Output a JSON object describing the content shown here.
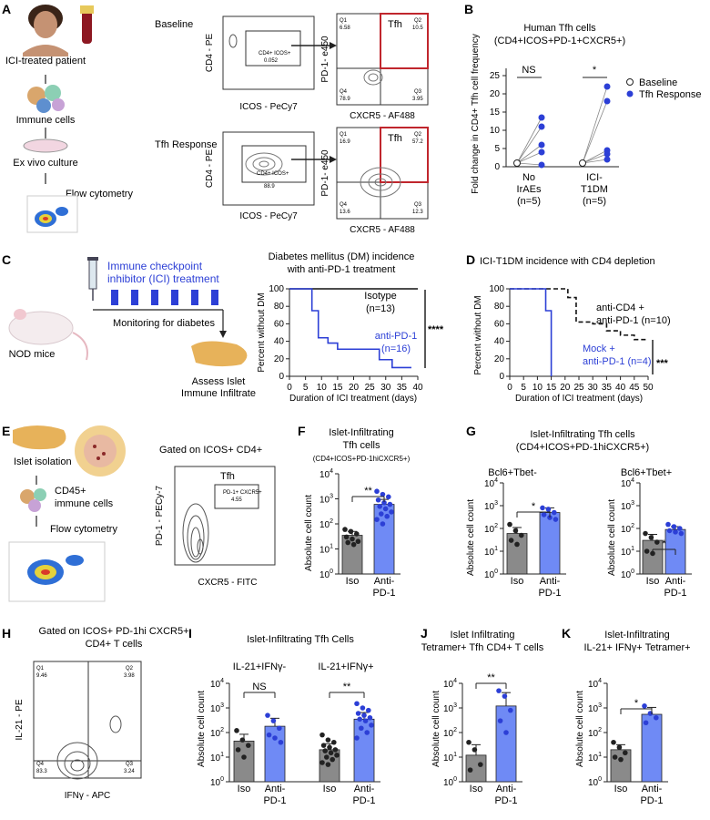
{
  "panels": {
    "A": {
      "letter": "A",
      "patient": "ICI-treated patient",
      "immune_cells": "Immune cells",
      "ex_vivo": "Ex vivo culture",
      "flow": "Flow cytometry",
      "row1": "Baseline",
      "row2": "Tfh Response",
      "cd4_pe": "CD4 - PE",
      "icos_pecy7": "ICOS - PeCy7",
      "pd1_e450": "PD-1- e450",
      "cxcr5_af488": "CXCR5 - AF488",
      "tfh": "Tfh",
      "gate_label": "CD4+ ICOS+",
      "baseline_gate": "0.052",
      "response_gate": "88.9",
      "quads_baseline": {
        "Q1": "6.58",
        "Q2": "10.5",
        "Q4": "78.9",
        "Q3": "3.95"
      },
      "quads_response": {
        "Q1": "16.9",
        "Q2": "57.2",
        "Q4": "13.6",
        "Q3": "12.3"
      }
    },
    "B": {
      "letter": "B",
      "title1": "Human Tfh cells",
      "title2": "(CD4+ICOS+PD-1+CXCR5+)",
      "ylabel": "Fold change in CD4+ Tfh cell frequency",
      "legend_baseline": "Baseline",
      "legend_response": "Tfh Response",
      "sig1": "NS",
      "sig2": "*",
      "g1a": "No",
      "g1b": "IrAEs",
      "g1c": "(n=5)",
      "g2a": "ICI-",
      "g2b": "T1DM",
      "g2c": "(n=5)",
      "yticks": [
        "0",
        "5",
        "10",
        "15",
        "20",
        "25"
      ]
    },
    "C": {
      "letter": "C",
      "banner1": "Immune checkpoint",
      "banner2": "inhibitor (ICI) treatment",
      "monitoring": "Monitoring for diabetes",
      "nod": "NOD mice",
      "assess1": "Assess Islet",
      "assess2": "Immune Infiltrate",
      "title1": "Diabetes mellitus (DM) incidence",
      "title2": "with anti-PD-1 treatment",
      "ylabel": "Percent without DM",
      "xlabel": "Duration of ICI treatment (days)",
      "isotype": "Isotype",
      "isotype_n": "(n=13)",
      "antipd1": "anti-PD-1",
      "antipd1_n": "(n=16)",
      "sig": "****",
      "xticks": [
        "0",
        "5",
        "10",
        "15",
        "20",
        "25",
        "30",
        "35",
        "40"
      ],
      "yticks": [
        "0",
        "20",
        "40",
        "60",
        "80",
        "100"
      ]
    },
    "D": {
      "letter": "D",
      "title": "ICI-T1DM incidence with CD4 depletion",
      "ylabel": "Percent without DM",
      "xlabel": "Duration of ICI treatment (days)",
      "cd4a": "anti-CD4 +",
      "cd4b": "anti-PD-1 (n=10)",
      "mocka": "Mock +",
      "mockb": "anti-PD-1 (n=4)",
      "sig": "***",
      "xticks": [
        "0",
        "5",
        "10",
        "15",
        "20",
        "25",
        "30",
        "35",
        "40",
        "45",
        "50"
      ],
      "yticks": [
        "0",
        "20",
        "40",
        "60",
        "80",
        "100"
      ]
    },
    "E": {
      "letter": "E",
      "islet_iso": "Islet isolation",
      "cd45a": "CD45+",
      "cd45b": "immune cells",
      "flow": "Flow cytometry",
      "gated": "Gated on ICOS+ CD4+",
      "tfh": "Tfh",
      "gate_name": "PD-1+ CXCR5+",
      "gate_val": "4.55",
      "ylabel": "PD-1 - PECy-7",
      "xlabel": "CXCR5 - FITC"
    },
    "F": {
      "letter": "F",
      "title1": "Islet-Infiltrating",
      "title2": "Tfh cells",
      "title3": "(CD4+ICOS+PD-1hiCXCR5+)",
      "ylabel": "Absolute cell count",
      "sig": "**",
      "x1": "Iso",
      "x2a": "Anti-",
      "x2b": "PD-1"
    },
    "G": {
      "letter": "G",
      "title1": "Islet-Infiltrating Tfh cells",
      "title2": "(CD4+ICOS+PD-1hiCXCR5+)",
      "sub1": "Bcl6+Tbet-",
      "sub2": "Bcl6+Tbet+",
      "ylabel": "Absolute cell count",
      "sig1": "*",
      "sig2": "*",
      "x1": "Iso",
      "x2a": "Anti-",
      "x2b": "PD-1"
    },
    "H": {
      "letter": "H",
      "gated1": "Gated on ICOS+ PD-1hi CXCR5+",
      "gated2": "CD4+ T cells",
      "ylabel": "IL-21 - PE",
      "xlabel": "IFNγ - APC",
      "quads": {
        "Q1": "9.46",
        "Q2": "3.98",
        "Q4": "83.3",
        "Q3": "3.24"
      }
    },
    "I": {
      "letter": "I",
      "title": "Islet-Infiltrating Tfh Cells",
      "sub1": "IL-21+IFNγ-",
      "sub2": "IL-21+IFNγ+",
      "ylabel": "Absolute cell count",
      "sig1": "NS",
      "sig2": "**",
      "x1": "Iso",
      "x2a": "Anti-",
      "x2b": "PD-1"
    },
    "J": {
      "letter": "J",
      "title1": "Islet Infiltrating",
      "title2": "Tetramer+ Tfh CD4+ T cells",
      "ylabel": "Absolute cell count",
      "sig": "**",
      "x1": "Iso",
      "x2a": "Anti-",
      "x2b": "PD-1"
    },
    "K": {
      "letter": "K",
      "title1": "Islet-Infiltrating",
      "title2": "IL-21+ IFNγ+ Tetramer+",
      "ylabel": "Absolute cell count",
      "sig": "*",
      "x1": "Iso",
      "x2a": "Anti-",
      "x2b": "PD-1"
    }
  },
  "log_ticks": [
    "10^0",
    "10^1",
    "10^2",
    "10^3",
    "10^4"
  ],
  "colors": {
    "blue": "#2c3fd6",
    "bar_blue": "#6f8af5",
    "bar_gray": "#8a8a8a",
    "dark": "#222222"
  },
  "chart_data": [
    {
      "id": "B",
      "type": "scatter",
      "title": "Human Tfh cells (CD4+ICOS+PD-1+CXCR5+)",
      "ylabel": "Fold change in CD4+ Tfh cell frequency",
      "ylim": [
        0,
        25
      ],
      "groups": [
        {
          "name": "No IrAEs",
          "baseline": [
            1,
            1,
            1,
            1,
            1
          ],
          "response": [
            13.5,
            11,
            6,
            4,
            0.5
          ]
        },
        {
          "name": "ICI-T1DM",
          "baseline": [
            1,
            1,
            1,
            1,
            1
          ],
          "response": [
            22,
            18,
            4.5,
            3.5,
            2
          ]
        }
      ]
    },
    {
      "id": "C",
      "type": "line",
      "title": "Diabetes mellitus (DM) incidence with anti-PD-1 treatment",
      "xlabel": "Duration of ICI treatment (days)",
      "ylabel": "Percent without DM",
      "xlim": [
        0,
        40
      ],
      "ylim": [
        0,
        100
      ],
      "series": [
        {
          "name": "Isotype (n=13)",
          "x": [
            0,
            40
          ],
          "y": [
            100,
            100
          ]
        },
        {
          "name": "anti-PD-1 (n=16)",
          "x": [
            0,
            4,
            4,
            7,
            7,
            9,
            9,
            12,
            12,
            15,
            15,
            28,
            28,
            32,
            32,
            38
          ],
          "y": [
            100,
            100,
            100,
            100,
            75,
            75,
            44,
            44,
            38,
            38,
            31,
            31,
            19,
            19,
            10,
            10
          ]
        }
      ]
    },
    {
      "id": "D",
      "type": "line",
      "title": "ICI-T1DM incidence with CD4 depletion",
      "xlabel": "Duration of ICI treatment (days)",
      "ylabel": "Percent without DM",
      "xlim": [
        0,
        50
      ],
      "ylim": [
        0,
        100
      ],
      "series": [
        {
          "name": "anti-CD4 + anti-PD-1 (n=10)",
          "x": [
            0,
            21,
            21,
            24,
            24,
            30,
            30,
            35,
            35,
            40,
            40,
            45,
            45,
            50
          ],
          "y": [
            100,
            100,
            90,
            90,
            62,
            62,
            60,
            60,
            52,
            52,
            47,
            47,
            42,
            42
          ]
        },
        {
          "name": "Mock + anti-PD-1 (n=4)",
          "x": [
            0,
            10,
            10,
            13,
            13,
            15,
            15
          ],
          "y": [
            100,
            100,
            100,
            100,
            75,
            75,
            0
          ]
        }
      ]
    },
    {
      "id": "F",
      "type": "bar",
      "title": "Islet-Infiltrating Tfh cells",
      "ylabel": "Absolute cell count",
      "yscale": "log",
      "ylim": [
        1,
        10000
      ],
      "categories": [
        "Iso",
        "Anti-PD-1"
      ],
      "values": [
        35,
        600
      ],
      "errors": [
        15,
        350
      ],
      "points": [
        [
          60,
          50,
          40,
          30,
          25,
          20,
          18,
          15
        ],
        [
          2000,
          1500,
          1200,
          900,
          700,
          600,
          500,
          400,
          300,
          250,
          200,
          150,
          100
        ]
      ]
    },
    {
      "id": "G1",
      "type": "bar",
      "title": "Bcl6+Tbet-",
      "ylabel": "Absolute cell count",
      "yscale": "log",
      "ylim": [
        1,
        10000
      ],
      "categories": [
        "Iso",
        "Anti-PD-1"
      ],
      "values": [
        60,
        500
      ],
      "errors": [
        50,
        300
      ],
      "points": [
        [
          150,
          80,
          50,
          30,
          20
        ],
        [
          800,
          700,
          500,
          400,
          300,
          250
        ]
      ]
    },
    {
      "id": "G2",
      "type": "bar",
      "title": "Bcl6+Tbet+",
      "ylabel": "Absolute cell count",
      "yscale": "log",
      "ylim": [
        1,
        10000
      ],
      "categories": [
        "Iso",
        "Anti-PD-1"
      ],
      "values": [
        30,
        90
      ],
      "errors": [
        25,
        30
      ],
      "points": [
        [
          60,
          40,
          25,
          10,
          8
        ],
        [
          150,
          120,
          100,
          80,
          70,
          60
        ]
      ]
    },
    {
      "id": "I",
      "type": "bar",
      "title": "Islet-Infiltrating Tfh Cells",
      "ylabel": "Absolute cell count",
      "yscale": "log",
      "ylim": [
        1,
        10000
      ],
      "categories": [
        "Iso (IL-21+IFNγ-)",
        "Anti-PD-1 (IL-21+IFNγ-)",
        "Iso (IL-21+IFNγ+)",
        "Anti-PD-1 (IL-21+IFNγ+)"
      ],
      "values": [
        45,
        180,
        20,
        350
      ],
      "errors": [
        40,
        200,
        15,
        300
      ],
      "points": [
        [
          120,
          50,
          30,
          20,
          10
        ],
        [
          500,
          300,
          150,
          80,
          60,
          40
        ],
        [
          80,
          50,
          40,
          30,
          25,
          20,
          18,
          15,
          12,
          10,
          8,
          6,
          5
        ],
        [
          1500,
          1000,
          800,
          600,
          500,
          400,
          350,
          300,
          200,
          150,
          100,
          60
        ]
      ]
    },
    {
      "id": "J",
      "type": "bar",
      "title": "Islet Infiltrating Tetramer+ Tfh CD4+ T cells",
      "ylabel": "Absolute cell count",
      "yscale": "log",
      "ylim": [
        1,
        10000
      ],
      "categories": [
        "Iso",
        "Anti-PD-1"
      ],
      "values": [
        12,
        1200
      ],
      "errors": [
        20,
        3000
      ],
      "points": [
        [
          40,
          20,
          5,
          3
        ],
        [
          5000,
          3000,
          800,
          300,
          100
        ]
      ]
    },
    {
      "id": "K",
      "type": "bar",
      "title": "Islet-Infiltrating IL-21+ IFNγ+ Tetramer+",
      "ylabel": "Absolute cell count",
      "yscale": "log",
      "ylim": [
        1,
        10000
      ],
      "categories": [
        "Iso",
        "Anti-PD-1"
      ],
      "values": [
        20,
        550
      ],
      "errors": [
        12,
        500
      ],
      "points": [
        [
          40,
          25,
          15,
          10,
          8
        ],
        [
          1200,
          600,
          400,
          250
        ]
      ]
    }
  ]
}
